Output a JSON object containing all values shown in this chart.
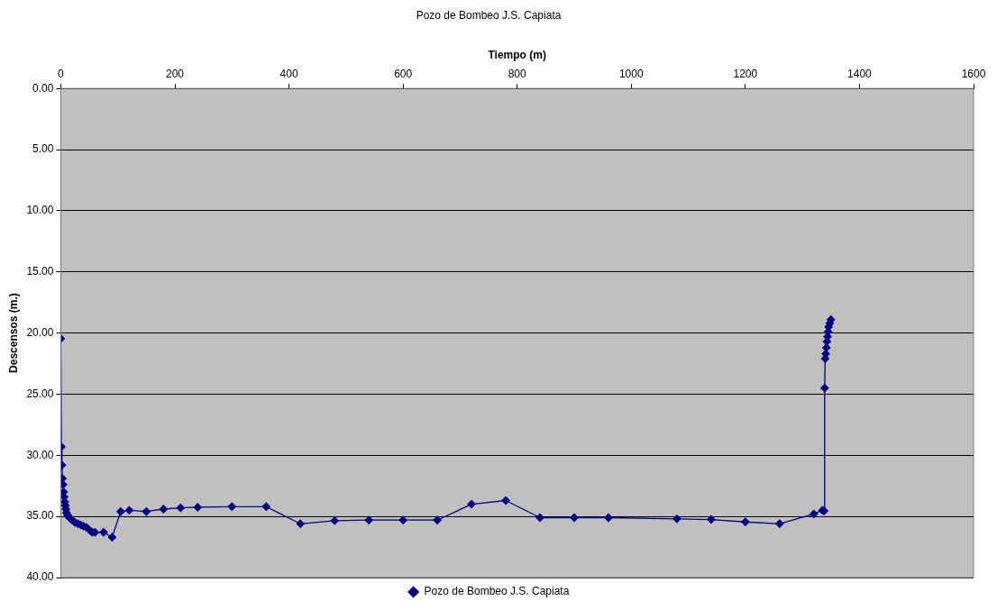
{
  "chart_data": {
    "type": "line",
    "title": "Pozo de Bombeo J.S. Capiata",
    "xlabel": "Tiempo (m)",
    "ylabel": "Descensos (m.)",
    "series": [
      {
        "name": "Pozo de Bombeo J.S. Capiata",
        "color": "#000080",
        "x": [
          0,
          1,
          2,
          3,
          4,
          5,
          6,
          7,
          8,
          9,
          10,
          12,
          15,
          20,
          25,
          30,
          35,
          40,
          45,
          50,
          55,
          60,
          75,
          90,
          105,
          120,
          150,
          180,
          210,
          240,
          300,
          360,
          420,
          480,
          540,
          600,
          660,
          720,
          780,
          840,
          900,
          960,
          1080,
          1140,
          1200,
          1260,
          1320,
          1335,
          1338,
          1339,
          1340,
          1341,
          1342,
          1343,
          1344,
          1345,
          1346,
          1348,
          1350
        ],
        "values": [
          20.45,
          29.3,
          30.8,
          31.9,
          32.4,
          33.0,
          33.4,
          33.8,
          34.1,
          34.4,
          34.7,
          34.9,
          35.1,
          35.3,
          35.5,
          35.6,
          35.7,
          35.8,
          35.9,
          36.1,
          36.3,
          36.3,
          36.3,
          36.7,
          34.6,
          34.5,
          34.6,
          34.4,
          34.3,
          34.25,
          34.2,
          34.2,
          35.6,
          35.35,
          35.3,
          35.3,
          35.3,
          34.0,
          33.7,
          35.1,
          35.1,
          35.1,
          35.2,
          35.25,
          35.45,
          35.6,
          34.8,
          34.5,
          34.55,
          24.5,
          22.1,
          21.7,
          21.2,
          20.7,
          20.3,
          19.9,
          19.5,
          19.2,
          18.9
        ]
      }
    ],
    "xlim": [
      0,
      1600
    ],
    "xticks": [
      0,
      200,
      400,
      600,
      800,
      1000,
      1200,
      1400,
      1600
    ],
    "ylim": [
      40,
      0
    ],
    "yticks": [
      {
        "value": 0,
        "label": "0.00"
      },
      {
        "value": 5,
        "label": "5.00"
      },
      {
        "value": 10,
        "label": "10.00"
      },
      {
        "value": 15,
        "label": "15.00"
      },
      {
        "value": 20,
        "label": "20.00"
      },
      {
        "value": 25,
        "label": "25.00"
      },
      {
        "value": 30,
        "label": "30.00"
      },
      {
        "value": 35,
        "label": "35.00"
      },
      {
        "value": 40,
        "label": "40.00"
      }
    ],
    "grid": "y",
    "legend": "bottom",
    "marker": "diamond",
    "line_style": "solid"
  }
}
